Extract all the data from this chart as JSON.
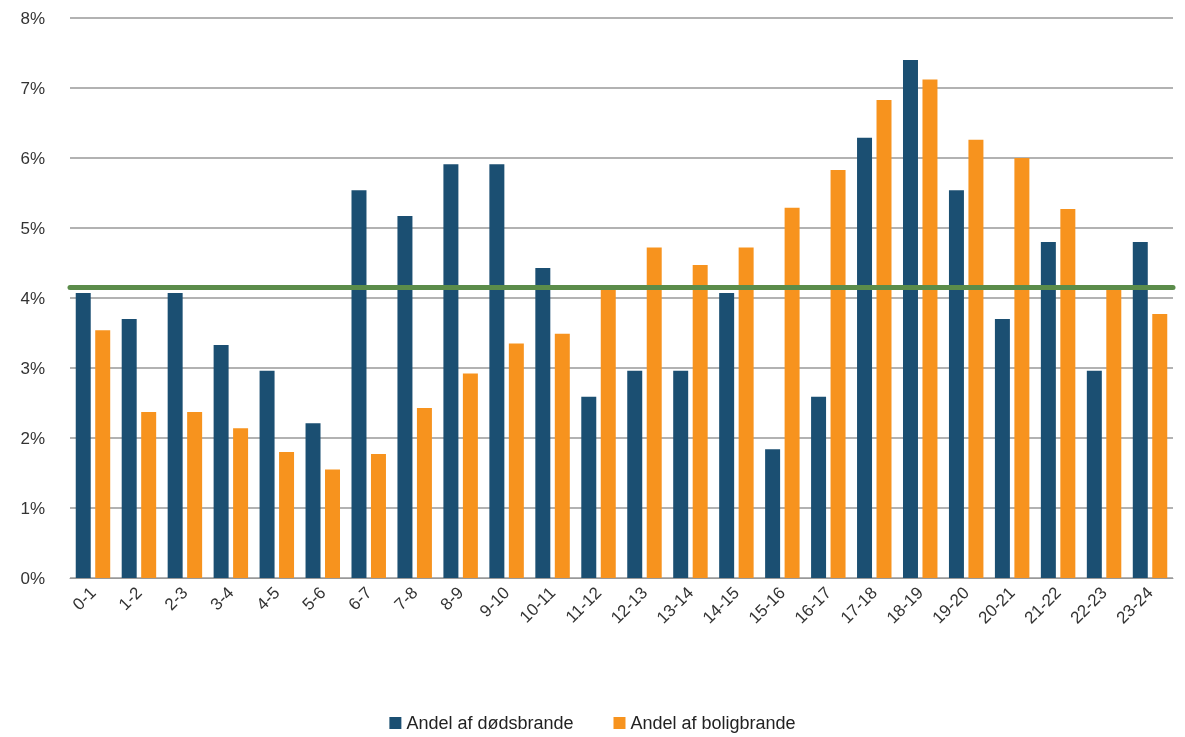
{
  "chart_data": {
    "type": "bar",
    "categories": [
      "0-1",
      "1-2",
      "2-3",
      "3-4",
      "4-5",
      "5-6",
      "6-7",
      "7-8",
      "8-9",
      "9-10",
      "10-11",
      "11-12",
      "12-13",
      "13-14",
      "14-15",
      "15-16",
      "16-17",
      "17-18",
      "18-19",
      "19-20",
      "20-21",
      "21-22",
      "22-23",
      "23-24"
    ],
    "series": [
      {
        "name": "Andel af dødsbrande",
        "color": "#1b4f72",
        "values": [
          4.07,
          3.7,
          4.07,
          3.33,
          2.96,
          2.21,
          5.54,
          5.17,
          5.91,
          5.91,
          4.43,
          2.59,
          2.96,
          2.96,
          4.07,
          1.84,
          2.59,
          6.29,
          7.4,
          5.54,
          3.7,
          4.8,
          2.96,
          4.8
        ]
      },
      {
        "name": "Andel af boligbrande",
        "color": "#f7931e",
        "values": [
          3.54,
          2.37,
          2.37,
          2.14,
          1.8,
          1.55,
          1.77,
          2.43,
          2.92,
          3.35,
          3.49,
          4.15,
          4.72,
          4.47,
          4.72,
          5.29,
          5.83,
          6.83,
          7.12,
          6.26,
          6.0,
          5.27,
          4.15,
          3.77
        ]
      }
    ],
    "ylim": [
      0,
      8
    ],
    "yticks": [
      {
        "value": 0,
        "label": "0%"
      },
      {
        "value": 1,
        "label": "1%"
      },
      {
        "value": 2,
        "label": "2%"
      },
      {
        "value": 3,
        "label": "3%"
      },
      {
        "value": 4,
        "label": "4%"
      },
      {
        "value": 5,
        "label": "5%"
      },
      {
        "value": 6,
        "label": "6%"
      },
      {
        "value": 7,
        "label": "7%"
      },
      {
        "value": 8,
        "label": "8%"
      }
    ],
    "ref_lines": [
      {
        "axis": "y",
        "value": 4.15,
        "color": "#5b8c4a",
        "line_style": "solid"
      }
    ],
    "grid": "y",
    "legend": "bottom"
  }
}
